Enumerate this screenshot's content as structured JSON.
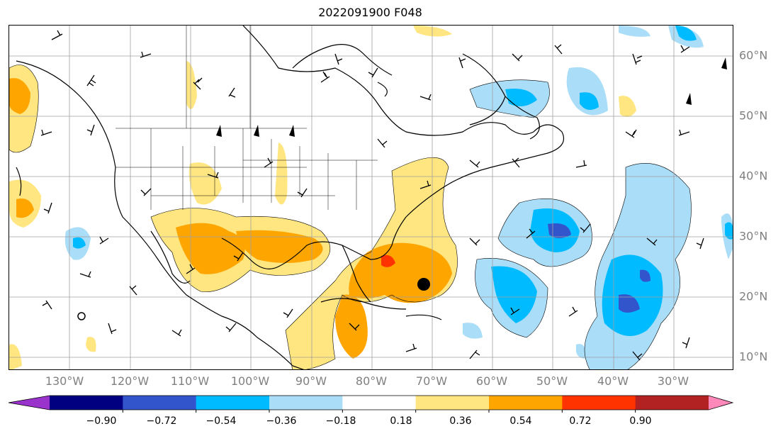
{
  "title": "2022091900 F048",
  "lon_labels": [
    "130°W",
    "120°W",
    "110°W",
    "100°W",
    "90°W",
    "80°W",
    "70°W",
    "60°W",
    "50°W",
    "40°W",
    "30°W"
  ],
  "lat_labels": [
    "60°N",
    "50°N",
    "40°N",
    "30°N",
    "20°N",
    "10°N"
  ],
  "colorbar": {
    "ticks": [
      "−0.90",
      "−0.72",
      "−0.54",
      "−0.36",
      "−0.18",
      "0.18",
      "0.36",
      "0.54",
      "0.72",
      "0.90"
    ],
    "colors": [
      "#9933cc",
      "#000080",
      "#3355cc",
      "#00bbff",
      "#aaddf8",
      "#ffffff",
      "#ffe680",
      "#ffa500",
      "#ff3300",
      "#b22222",
      "#ff88bb"
    ]
  },
  "marker": {
    "name": "storm-center",
    "lon": -70.5,
    "lat": 22.3
  }
}
